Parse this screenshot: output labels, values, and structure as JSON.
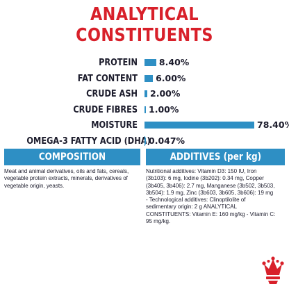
{
  "title": "ANALYTICAL CONSTITUENTS",
  "chart_data": {
    "type": "bar",
    "categories": [
      "PROTEIN",
      "FAT CONTENT",
      "CRUDE ASH",
      "CRUDE FIBRES",
      "MOISTURE",
      "OMEGA-3 FATTY ACID (DHA)"
    ],
    "value_labels": [
      "8.40%",
      "6.00%",
      "2.00%",
      "1.00%",
      "78.40%",
      "0.047%"
    ],
    "values": [
      8.4,
      6.0,
      2.0,
      1.0,
      78.4,
      0.047
    ],
    "xlim": [
      0,
      78.4
    ]
  },
  "composition": {
    "heading": "COMPOSITION",
    "text": "Meat and animal derivatives, oils and fats, cereals, vegetable protein extracts, minerals, derivatives of vegetable origin, yeasts."
  },
  "additives": {
    "heading": "ADDITIVES (per kg)",
    "text": "Nutritional additives: Vitamin D3: 150 IU, Iron (3b103): 6 mg, Iodine (3b202): 0.34 mg, Copper (3b405, 3b406): 2.7 mg, Manganese (3b502, 3b503, 3b504): 1.9 mg, Zinc (3b603, 3b605, 3b606): 19 mg - Technological additives: Clinoptilolite of sedimentary origin: 2 g ANALYTICAL CONSTITUENTS: Vitamin E: 160 mg/kg - Vitamin C: 95 mg/kg."
  },
  "colors": {
    "title": "#d8202a",
    "accent": "#2e8fc4",
    "text": "#1c1c2c",
    "logo": "#d8202a"
  },
  "icons": {
    "logo": "crown-logo-icon"
  }
}
